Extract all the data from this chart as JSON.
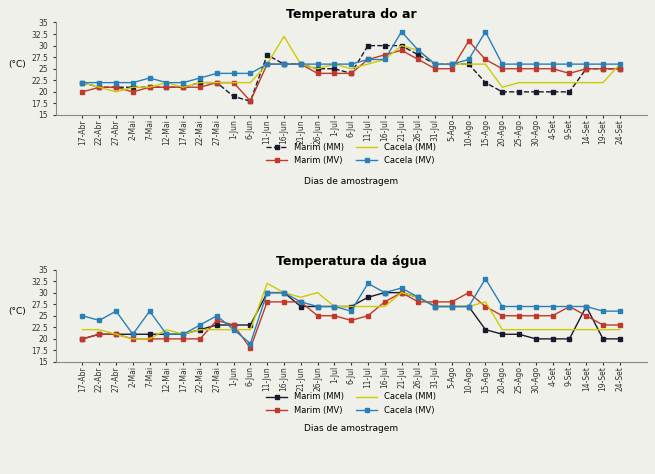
{
  "x_labels": [
    "17-Abr",
    "22-Abr",
    "27-Abr",
    "2-Mai",
    "7-Mai",
    "12-Mai",
    "17-Mai",
    "22-Mai",
    "27-Mai",
    "1-Jun",
    "6-Jun",
    "11-Jun",
    "16-Jun",
    "21-Jun",
    "26-Jun",
    "1-Jul",
    "6-Jul",
    "11-Jul",
    "16-Jul",
    "21-Jul",
    "26-Jul",
    "31-Jul",
    "5-Ago",
    "10-Ago",
    "15-Ago",
    "20-Ago",
    "25-Ago",
    "30-Ago",
    "4-Set",
    "9-Set",
    "14-Set",
    "19-Set",
    "24-Set"
  ],
  "air_marim_MM": [
    22,
    21,
    21,
    21,
    21,
    21,
    21,
    22,
    22,
    19,
    18,
    28,
    26,
    26,
    25,
    25,
    24,
    30,
    30,
    30,
    28,
    26,
    26,
    26,
    22,
    20,
    20,
    20,
    20,
    20,
    25,
    25,
    25
  ],
  "air_marim_MV": [
    20,
    21,
    21,
    20,
    21,
    21,
    21,
    21,
    22,
    22,
    18,
    26,
    26,
    26,
    24,
    24,
    24,
    27,
    28,
    29,
    27,
    25,
    25,
    31,
    27,
    25,
    25,
    25,
    25,
    24,
    25,
    25,
    25
  ],
  "air_cacela_MM": [
    22,
    21,
    20,
    21,
    21,
    22,
    21,
    22,
    22,
    22,
    22,
    26,
    32,
    26,
    25,
    26,
    25,
    26,
    27,
    30,
    29,
    26,
    26,
    26,
    26,
    21,
    22,
    22,
    22,
    22,
    22,
    22,
    26
  ],
  "air_cacela_MV": [
    22,
    22,
    22,
    22,
    23,
    22,
    22,
    23,
    24,
    24,
    24,
    26,
    26,
    26,
    26,
    26,
    26,
    27,
    27,
    33,
    29,
    26,
    26,
    27,
    33,
    26,
    26,
    26,
    26,
    26,
    26,
    26,
    26
  ],
  "water_marim_MM": [
    20,
    21,
    21,
    21,
    21,
    21,
    21,
    22,
    23,
    23,
    23,
    30,
    30,
    27,
    27,
    27,
    27,
    29,
    30,
    30,
    29,
    27,
    27,
    27,
    22,
    21,
    21,
    20,
    20,
    20,
    27,
    20,
    20
  ],
  "water_marim_MV": [
    20,
    21,
    21,
    20,
    20,
    20,
    20,
    20,
    24,
    23,
    18,
    28,
    28,
    28,
    25,
    25,
    24,
    25,
    28,
    30,
    28,
    28,
    28,
    30,
    27,
    25,
    25,
    25,
    25,
    27,
    25,
    23,
    23
  ],
  "water_cacela_MM": [
    22,
    22,
    21,
    20,
    20,
    22,
    21,
    22,
    22,
    22,
    22,
    32,
    30,
    29,
    30,
    27,
    27,
    27,
    27,
    30,
    29,
    27,
    27,
    27,
    28,
    22,
    22,
    22,
    22,
    22,
    22,
    22,
    22
  ],
  "water_cacela_MV": [
    25,
    24,
    26,
    21,
    26,
    21,
    21,
    23,
    25,
    22,
    19,
    30,
    30,
    28,
    27,
    27,
    26,
    32,
    30,
    31,
    29,
    27,
    27,
    27,
    33,
    27,
    27,
    27,
    27,
    27,
    27,
    26,
    26
  ],
  "title_air": "Temperatura do ar",
  "title_water": "Temperatura da água",
  "xlabel": "Dias de amostragem",
  "ylabel": "(°C)",
  "ylim_air": [
    15,
    35
  ],
  "ylim_water": [
    15,
    35
  ],
  "yticks_air": [
    15,
    17.5,
    20,
    22.5,
    25,
    27.5,
    30,
    32.5,
    35
  ],
  "yticks_water": [
    15,
    17.5,
    20,
    22.5,
    25,
    27.5,
    30,
    32.5,
    35
  ],
  "legend_labels": [
    "Marim (MM)",
    "Marim (MV)",
    "Cacela (MM)",
    "Cacela (MV)"
  ],
  "colors": {
    "marim_MM": "#1a1a2e",
    "marim_MV": "#c0392b",
    "cacela_MM": "#cccc00",
    "cacela_MV": "#2980b9"
  },
  "bg_color": "#f0f0eb"
}
